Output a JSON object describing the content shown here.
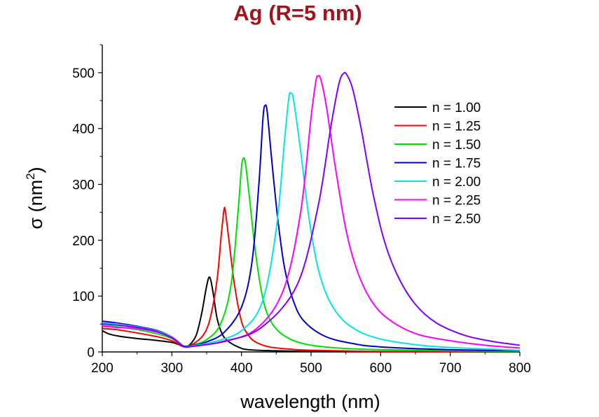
{
  "chart_data": {
    "type": "line",
    "title": "Ag (R=5 nm)",
    "title_color": "#a0151c",
    "xlabel": "wavelength (nm)",
    "ylabel_prefix": "σ (nm",
    "ylabel_sup": "2",
    "ylabel_suffix": ")",
    "xlim": [
      200,
      800
    ],
    "ylim": [
      0,
      550
    ],
    "x_ticks": [
      200,
      300,
      400,
      500,
      600,
      700,
      800
    ],
    "y_ticks": [
      0,
      100,
      200,
      300,
      400,
      500
    ],
    "legend_position": "top-right",
    "grid": false,
    "series": [
      {
        "name": "n = 1.00",
        "color": "#000000",
        "points": [
          [
            200,
            38
          ],
          [
            210,
            32
          ],
          [
            225,
            28
          ],
          [
            250,
            24
          ],
          [
            275,
            21
          ],
          [
            300,
            17
          ],
          [
            310,
            13
          ],
          [
            318,
            9
          ],
          [
            325,
            12
          ],
          [
            335,
            30
          ],
          [
            343,
            70
          ],
          [
            349,
            112
          ],
          [
            353,
            133
          ],
          [
            356,
            128
          ],
          [
            360,
            100
          ],
          [
            365,
            60
          ],
          [
            372,
            33
          ],
          [
            380,
            20
          ],
          [
            395,
            9
          ],
          [
            410,
            4
          ],
          [
            450,
            2
          ],
          [
            500,
            1
          ],
          [
            600,
            0.5
          ],
          [
            800,
            0
          ]
        ]
      },
      {
        "name": "n = 1.25",
        "color": "#ff0000",
        "points": [
          [
            200,
            42
          ],
          [
            220,
            40
          ],
          [
            250,
            34
          ],
          [
            280,
            27
          ],
          [
            300,
            20
          ],
          [
            310,
            14
          ],
          [
            318,
            10
          ],
          [
            330,
            14
          ],
          [
            345,
            30
          ],
          [
            355,
            60
          ],
          [
            365,
            130
          ],
          [
            371,
            210
          ],
          [
            375,
            255
          ],
          [
            377,
            250
          ],
          [
            382,
            200
          ],
          [
            390,
            120
          ],
          [
            400,
            55
          ],
          [
            410,
            30
          ],
          [
            420,
            18
          ],
          [
            440,
            9
          ],
          [
            470,
            5
          ],
          [
            500,
            3
          ],
          [
            600,
            1
          ],
          [
            800,
            0.5
          ]
        ]
      },
      {
        "name": "n = 1.50",
        "color": "#00e000",
        "points": [
          [
            200,
            47
          ],
          [
            220,
            45
          ],
          [
            250,
            40
          ],
          [
            280,
            32
          ],
          [
            300,
            24
          ],
          [
            310,
            16
          ],
          [
            318,
            10
          ],
          [
            330,
            12
          ],
          [
            350,
            22
          ],
          [
            370,
            50
          ],
          [
            385,
            120
          ],
          [
            395,
            250
          ],
          [
            400,
            330
          ],
          [
            403,
            347
          ],
          [
            406,
            335
          ],
          [
            412,
            270
          ],
          [
            420,
            180
          ],
          [
            430,
            100
          ],
          [
            440,
            60
          ],
          [
            455,
            35
          ],
          [
            480,
            18
          ],
          [
            520,
            9
          ],
          [
            600,
            4
          ],
          [
            800,
            1
          ]
        ]
      },
      {
        "name": "n = 1.75",
        "color": "#0000cc",
        "points": [
          [
            200,
            55
          ],
          [
            220,
            52
          ],
          [
            250,
            46
          ],
          [
            280,
            38
          ],
          [
            300,
            27
          ],
          [
            310,
            17
          ],
          [
            318,
            10
          ],
          [
            330,
            12
          ],
          [
            350,
            18
          ],
          [
            375,
            35
          ],
          [
            400,
            80
          ],
          [
            415,
            160
          ],
          [
            425,
            300
          ],
          [
            431,
            420
          ],
          [
            434,
            441
          ],
          [
            437,
            430
          ],
          [
            443,
            350
          ],
          [
            452,
            240
          ],
          [
            462,
            150
          ],
          [
            475,
            90
          ],
          [
            490,
            55
          ],
          [
            520,
            28
          ],
          [
            560,
            15
          ],
          [
            600,
            9
          ],
          [
            700,
            4
          ],
          [
            800,
            2
          ]
        ]
      },
      {
        "name": "n = 2.00",
        "color": "#00e5e5",
        "points": [
          [
            200,
            52
          ],
          [
            220,
            50
          ],
          [
            250,
            45
          ],
          [
            280,
            37
          ],
          [
            300,
            27
          ],
          [
            310,
            17
          ],
          [
            318,
            9
          ],
          [
            330,
            11
          ],
          [
            360,
            18
          ],
          [
            400,
            38
          ],
          [
            430,
            90
          ],
          [
            450,
            220
          ],
          [
            462,
            380
          ],
          [
            468,
            455
          ],
          [
            471,
            463
          ],
          [
            475,
            450
          ],
          [
            485,
            360
          ],
          [
            497,
            240
          ],
          [
            510,
            150
          ],
          [
            525,
            95
          ],
          [
            545,
            58
          ],
          [
            570,
            36
          ],
          [
            600,
            23
          ],
          [
            650,
            13
          ],
          [
            700,
            8
          ],
          [
            800,
            3
          ]
        ]
      },
      {
        "name": "n = 2.25",
        "color": "#ff00ff",
        "points": [
          [
            200,
            46
          ],
          [
            220,
            44
          ],
          [
            250,
            42
          ],
          [
            280,
            35
          ],
          [
            300,
            26
          ],
          [
            310,
            17
          ],
          [
            318,
            9
          ],
          [
            330,
            10
          ],
          [
            370,
            18
          ],
          [
            420,
            40
          ],
          [
            460,
            110
          ],
          [
            485,
            250
          ],
          [
            500,
            420
          ],
          [
            507,
            485
          ],
          [
            510,
            494
          ],
          [
            514,
            488
          ],
          [
            522,
            440
          ],
          [
            535,
            330
          ],
          [
            550,
            220
          ],
          [
            565,
            150
          ],
          [
            585,
            95
          ],
          [
            610,
            60
          ],
          [
            650,
            33
          ],
          [
            700,
            20
          ],
          [
            750,
            12
          ],
          [
            800,
            7
          ]
        ]
      },
      {
        "name": "n = 2.50",
        "color": "#7f00ff",
        "points": [
          [
            200,
            50
          ],
          [
            220,
            48
          ],
          [
            250,
            44
          ],
          [
            280,
            36
          ],
          [
            300,
            25
          ],
          [
            310,
            16
          ],
          [
            318,
            9
          ],
          [
            330,
            10
          ],
          [
            380,
            20
          ],
          [
            430,
            45
          ],
          [
            480,
            120
          ],
          [
            510,
            260
          ],
          [
            528,
            400
          ],
          [
            540,
            480
          ],
          [
            547,
            499
          ],
          [
            552,
            495
          ],
          [
            560,
            470
          ],
          [
            572,
            400
          ],
          [
            588,
            290
          ],
          [
            605,
            200
          ],
          [
            625,
            135
          ],
          [
            650,
            85
          ],
          [
            680,
            52
          ],
          [
            720,
            30
          ],
          [
            760,
            19
          ],
          [
            800,
            12
          ]
        ]
      }
    ]
  }
}
